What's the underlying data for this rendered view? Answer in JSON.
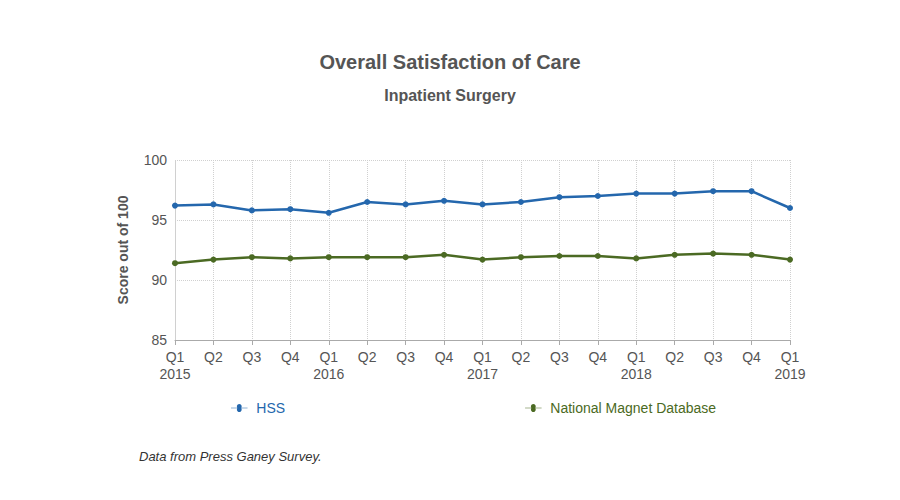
{
  "chart_data": {
    "type": "line",
    "title": "Overall Satisfaction of Care",
    "subtitle": "Inpatient Surgery",
    "y_label": "Score out of 100",
    "caption": "Data from Press Ganey Survey.",
    "categories": [
      "Q1\n2015",
      "Q2",
      "Q3",
      "Q4",
      "Q1\n2016",
      "Q2",
      "Q3",
      "Q4",
      "Q1\n2017",
      "Q2",
      "Q3",
      "Q4",
      "Q1\n2018",
      "Q2",
      "Q3",
      "Q4",
      "Q1\n2019"
    ],
    "series": [
      {
        "name": "HSS",
        "color": "#2467ad",
        "values": [
          96.2,
          96.3,
          95.8,
          95.9,
          95.6,
          96.5,
          96.3,
          96.6,
          96.3,
          96.5,
          96.9,
          97.0,
          97.2,
          97.2,
          97.4,
          97.4,
          96.0
        ]
      },
      {
        "name": "National Magnet Database",
        "color": "#4b6a23",
        "values": [
          91.4,
          91.7,
          91.9,
          91.8,
          91.9,
          91.9,
          91.9,
          92.1,
          91.7,
          91.9,
          92.0,
          92.0,
          91.8,
          92.1,
          92.2,
          92.1,
          91.7
        ]
      }
    ],
    "ylim": [
      85,
      100
    ],
    "yticks": [
      85,
      90,
      95,
      100
    ],
    "grid": true,
    "legend": "bottom",
    "marker": "circle",
    "line_style": "solid"
  }
}
